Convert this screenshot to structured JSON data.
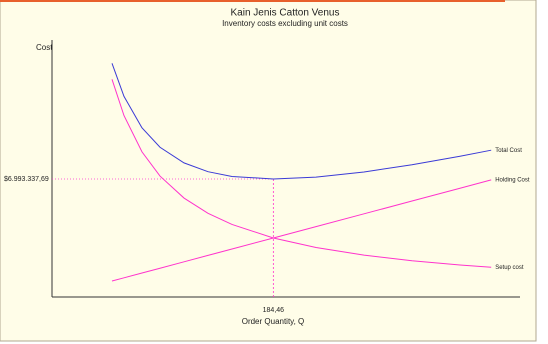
{
  "chart_data": {
    "type": "line",
    "title": "Kain Jenis Catton Venus",
    "subtitle": "Inventory costs excluding unit costs",
    "y_label": "Cost",
    "x_label": "Order Quantity, Q",
    "x": [
      50,
      60,
      75,
      90,
      110,
      130,
      150,
      184.46,
      220,
      260,
      300,
      340,
      366
    ],
    "series": [
      {
        "name": "Total Cost",
        "color": "#3a3ad6",
        "values": [
          13847734,
          11887313,
          10021674,
          8872698,
          7948806,
          7425843,
          7143438,
          6993337.69,
          7102217,
          7409429,
          7836920,
          8342239,
          8700344
        ]
      },
      {
        "name": "Holding Cost",
        "color": "#ff33cc",
        "values": [
          947823,
          1137387,
          1421734,
          1706081,
          2085210,
          2464339,
          2843468,
          3496669,
          4170419,
          4928677,
          5686935,
          6445193,
          6938061
        ]
      },
      {
        "name": "Setup cost",
        "color": "#ff33cc",
        "values": [
          12899911,
          10749926,
          8599940,
          7166617,
          5863596,
          4961504,
          4299970,
          3496669,
          2931798,
          2480752,
          2149985,
          1897046,
          1762283
        ]
      }
    ],
    "xlim": [
      0,
      390
    ],
    "ylim": [
      0,
      16000000
    ],
    "xticks": [
      {
        "value": 184.46,
        "label": "184,46"
      }
    ],
    "yticks": [
      {
        "value": 6993337.69,
        "label": "$6.993.337,69"
      }
    ],
    "reference_color": "#ff33cc"
  }
}
